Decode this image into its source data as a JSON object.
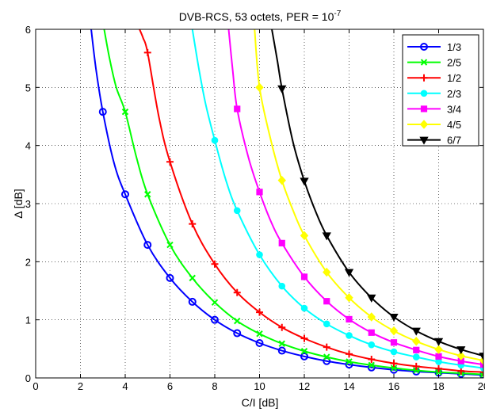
{
  "chart_data": {
    "type": "line",
    "title": "DVB-RCS, 53 octets, PER = 10",
    "title_superscript": "-7",
    "xlabel": "C/I [dB]",
    "ylabel": "Δ [dB]",
    "xlim": [
      0,
      20
    ],
    "ylim": [
      0,
      6
    ],
    "xticks": [
      "0",
      "2",
      "4",
      "6",
      "8",
      "10",
      "12",
      "14",
      "16",
      "18",
      "20"
    ],
    "yticks": [
      "0",
      "1",
      "2",
      "3",
      "4",
      "5",
      "6"
    ],
    "grid": true,
    "legend_position": "top-right",
    "series": [
      {
        "name": "1/3",
        "color": "#0000ff",
        "marker": "circle",
        "curve_x": [
          2.48,
          2.7,
          3.0,
          3.5,
          4.0,
          5.0,
          6.0,
          7.0,
          8.0,
          9.0,
          10.0,
          11.0,
          12.0,
          13.0,
          14.0,
          15.0,
          16.0,
          17.0,
          18.0,
          19.0,
          20.0
        ],
        "curve_y": [
          6.0,
          5.3,
          4.58,
          3.7,
          3.16,
          2.29,
          1.72,
          1.31,
          1.0,
          0.77,
          0.6,
          0.47,
          0.37,
          0.29,
          0.23,
          0.18,
          0.14,
          0.11,
          0.09,
          0.07,
          0.05
        ],
        "marker_x": [
          3,
          4,
          5,
          6,
          7,
          8,
          9,
          10,
          11,
          12,
          13,
          14,
          15,
          16,
          17,
          18,
          19,
          20
        ],
        "marker_y": [
          4.58,
          3.16,
          2.29,
          1.72,
          1.31,
          1.0,
          0.77,
          0.6,
          0.47,
          0.37,
          0.29,
          0.23,
          0.18,
          0.14,
          0.11,
          0.09,
          0.07,
          0.05
        ]
      },
      {
        "name": "2/5",
        "color": "#00ff00",
        "marker": "x",
        "curve_x": [
          3.06,
          3.3,
          3.6,
          4.0,
          4.5,
          5.0,
          6.0,
          7.0,
          8.0,
          9.0,
          10.0,
          11.0,
          12.0,
          13.0,
          14.0,
          15.0,
          16.0,
          17.0,
          18.0,
          19.0,
          20.0
        ],
        "curve_y": [
          6.0,
          5.5,
          5.0,
          4.58,
          3.8,
          3.16,
          2.29,
          1.72,
          1.3,
          0.98,
          0.76,
          0.59,
          0.46,
          0.36,
          0.28,
          0.22,
          0.17,
          0.13,
          0.1,
          0.08,
          0.06
        ],
        "marker_x": [
          4,
          5,
          6,
          7,
          8,
          9,
          10,
          11,
          12,
          13,
          14,
          15,
          16,
          17,
          18,
          19,
          20
        ],
        "marker_y": [
          4.58,
          3.16,
          2.29,
          1.72,
          1.3,
          0.98,
          0.76,
          0.59,
          0.46,
          0.36,
          0.28,
          0.22,
          0.17,
          0.13,
          0.1,
          0.08,
          0.06
        ]
      },
      {
        "name": "1/2",
        "color": "#ff0000",
        "marker": "plus",
        "curve_x": [
          4.64,
          4.8,
          5.0,
          5.5,
          6.0,
          7.0,
          8.0,
          9.0,
          10.0,
          11.0,
          12.0,
          13.0,
          14.0,
          15.0,
          16.0,
          17.0,
          18.0,
          19.0,
          20.0
        ],
        "curve_y": [
          6.0,
          5.85,
          5.6,
          4.5,
          3.72,
          2.65,
          1.96,
          1.47,
          1.13,
          0.87,
          0.68,
          0.53,
          0.41,
          0.32,
          0.25,
          0.2,
          0.16,
          0.12,
          0.1
        ],
        "marker_x": [
          5,
          6,
          7,
          8,
          9,
          10,
          11,
          12,
          13,
          14,
          15,
          16,
          17,
          18,
          19,
          20
        ],
        "marker_y": [
          5.6,
          3.72,
          2.65,
          1.96,
          1.47,
          1.13,
          0.87,
          0.68,
          0.53,
          0.41,
          0.32,
          0.25,
          0.2,
          0.16,
          0.12,
          0.1
        ]
      },
      {
        "name": "2/3",
        "color": "#00ffff",
        "marker": "circle-filled",
        "curve_x": [
          7.0,
          7.3,
          7.6,
          8.0,
          8.5,
          9.0,
          10.0,
          11.0,
          12.0,
          13.0,
          14.0,
          15.0,
          16.0,
          17.0,
          18.0,
          19.0,
          20.0
        ],
        "curve_y": [
          6.0,
          5.3,
          4.7,
          4.09,
          3.4,
          2.88,
          2.12,
          1.58,
          1.2,
          0.93,
          0.73,
          0.57,
          0.45,
          0.36,
          0.28,
          0.22,
          0.17
        ],
        "marker_x": [
          8,
          9,
          10,
          11,
          12,
          13,
          14,
          15,
          16,
          17,
          18,
          19,
          20
        ],
        "marker_y": [
          4.09,
          2.88,
          2.12,
          1.58,
          1.2,
          0.93,
          0.73,
          0.57,
          0.45,
          0.36,
          0.28,
          0.22,
          0.17
        ]
      },
      {
        "name": "3/4",
        "color": "#ff00ff",
        "marker": "square",
        "curve_x": [
          8.62,
          8.8,
          9.0,
          9.5,
          10.0,
          10.5,
          11.0,
          12.0,
          13.0,
          14.0,
          15.0,
          16.0,
          17.0,
          18.0,
          19.0,
          20.0
        ],
        "curve_y": [
          6.0,
          5.3,
          4.63,
          3.8,
          3.2,
          2.7,
          2.32,
          1.74,
          1.32,
          1.01,
          0.78,
          0.61,
          0.48,
          0.37,
          0.29,
          0.23
        ],
        "marker_x": [
          9,
          10,
          11,
          12,
          13,
          14,
          15,
          16,
          17,
          18,
          19,
          20
        ],
        "marker_y": [
          4.63,
          3.2,
          2.32,
          1.74,
          1.32,
          1.01,
          0.78,
          0.61,
          0.48,
          0.37,
          0.29,
          0.23
        ]
      },
      {
        "name": "4/5",
        "color": "#ffff00",
        "marker": "diamond",
        "curve_x": [
          9.78,
          10.0,
          10.5,
          11.0,
          11.5,
          12.0,
          13.0,
          14.0,
          15.0,
          16.0,
          17.0,
          18.0,
          19.0,
          20.0
        ],
        "curve_y": [
          6.0,
          5.0,
          4.1,
          3.4,
          2.88,
          2.45,
          1.82,
          1.38,
          1.05,
          0.81,
          0.63,
          0.49,
          0.38,
          0.3
        ],
        "marker_x": [
          10,
          11,
          12,
          13,
          14,
          15,
          16,
          17,
          18,
          19,
          20
        ],
        "marker_y": [
          5.0,
          3.4,
          2.45,
          1.82,
          1.38,
          1.05,
          0.81,
          0.63,
          0.49,
          0.38,
          0.3
        ]
      },
      {
        "name": "6/7",
        "color": "#000000",
        "marker": "triangle-down",
        "curve_x": [
          10.55,
          10.8,
          11.0,
          11.5,
          12.0,
          12.5,
          13.0,
          14.0,
          15.0,
          16.0,
          17.0,
          18.0,
          19.0,
          20.0
        ],
        "curve_y": [
          6.0,
          5.45,
          4.98,
          4.05,
          3.39,
          2.87,
          2.45,
          1.82,
          1.38,
          1.05,
          0.81,
          0.63,
          0.49,
          0.38
        ],
        "marker_x": [
          11,
          12,
          13,
          14,
          15,
          16,
          17,
          18,
          19,
          20
        ],
        "marker_y": [
          4.98,
          3.39,
          2.45,
          1.82,
          1.38,
          1.05,
          0.81,
          0.63,
          0.49,
          0.38
        ]
      }
    ]
  }
}
